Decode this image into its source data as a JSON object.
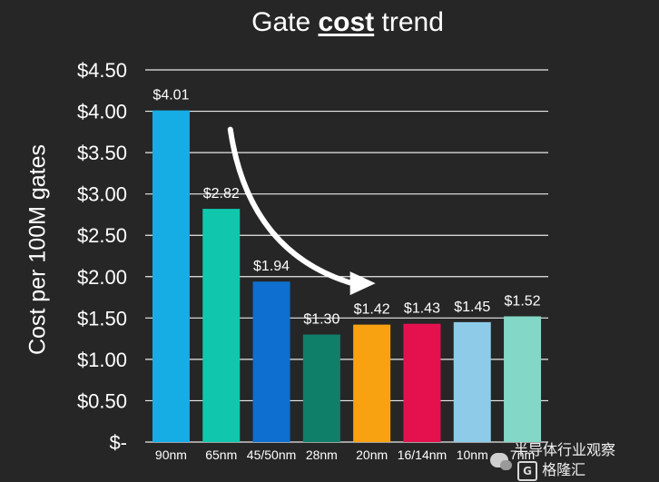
{
  "title": {
    "prefix": "Gate ",
    "bold": "cost",
    "suffix": " trend"
  },
  "watermark": {
    "line1": "半导体行业观察",
    "line2": "格隆汇",
    "logo_letter": "G"
  },
  "colors": {
    "background": "#262626",
    "grid": "#ffffff",
    "text": "#ffffff",
    "arrow": "#ffffff"
  },
  "chart_data": {
    "type": "bar",
    "title": "Gate cost trend",
    "xlabel": "",
    "ylabel": "Cost per 100M gates",
    "ylim": [
      0,
      4.5
    ],
    "yticks": [
      0,
      0.5,
      1.0,
      1.5,
      2.0,
      2.5,
      3.0,
      3.5,
      4.0,
      4.5
    ],
    "ytick_labels": [
      "$-",
      "$0.50",
      "$1.00",
      "$1.50",
      "$2.00",
      "$2.50",
      "$3.00",
      "$3.50",
      "$4.00",
      "$4.50"
    ],
    "grid": true,
    "categories": [
      "90nm",
      "65nm",
      "45/50nm",
      "28nm",
      "20nm",
      "16/14nm",
      "10nm",
      "7nm"
    ],
    "values": [
      4.01,
      2.82,
      1.94,
      1.3,
      1.42,
      1.43,
      1.45,
      1.52
    ],
    "data_labels": [
      "$4.01",
      "$2.82",
      "$1.94",
      "$1.30",
      "$1.42",
      "$1.43",
      "$1.45",
      "$1.52"
    ],
    "bar_colors": [
      "#16ade4",
      "#10c7ad",
      "#0e6fd0",
      "#107f6a",
      "#f9a211",
      "#e5114f",
      "#8ecbe9",
      "#83d7c7"
    ],
    "annotations": [
      {
        "type": "arrow",
        "from_category": "65nm",
        "to_category": "20nm",
        "meaning": "cost decreasing trend"
      }
    ]
  }
}
